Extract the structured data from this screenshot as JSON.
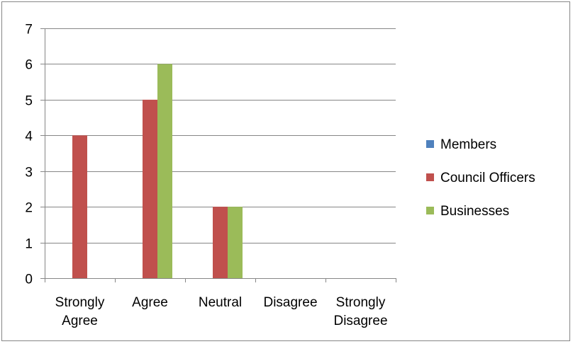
{
  "chart_data": {
    "type": "bar",
    "categories": [
      [
        "Strongly",
        "Agree"
      ],
      [
        "Agree"
      ],
      [
        "Neutral"
      ],
      [
        "Disagree"
      ],
      [
        "Strongly",
        "Disagree"
      ]
    ],
    "series": [
      {
        "name": "Members",
        "color": "#4F81BD",
        "values": [
          0,
          0,
          0,
          0,
          0
        ]
      },
      {
        "name": "Council Officers",
        "color": "#C0504D",
        "values": [
          4,
          5,
          2,
          0,
          0
        ]
      },
      {
        "name": "Businesses",
        "color": "#9BBB59",
        "values": [
          0,
          6,
          2,
          0,
          0
        ]
      }
    ],
    "ylim": [
      0,
      7
    ],
    "yticks": [
      0,
      1,
      2,
      3,
      4,
      5,
      6,
      7
    ],
    "grid": true,
    "legend_position": "right"
  }
}
